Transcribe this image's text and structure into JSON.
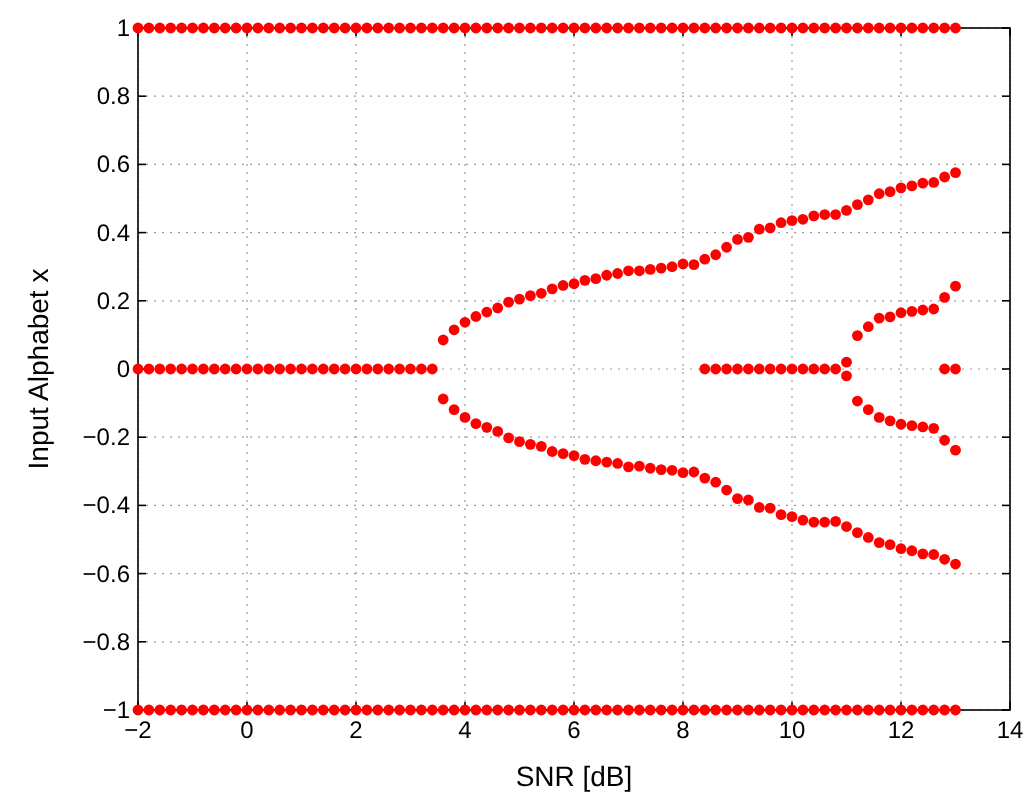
{
  "chart_data": {
    "type": "scatter",
    "xlabel": "SNR [dB]",
    "ylabel": "Input Alphabet x",
    "xlim": [
      -2,
      14
    ],
    "xticks": [
      {
        "value": -2,
        "label": "−2"
      },
      0,
      2,
      4,
      6,
      8,
      10,
      12,
      14
    ],
    "ylim": [
      -1,
      1
    ],
    "yticks": [
      {
        "value": -1,
        "label": "−1"
      },
      {
        "value": -0.8,
        "label": "−0.8"
      },
      {
        "value": -0.6,
        "label": "−0.6"
      },
      {
        "value": -0.4,
        "label": "−0.4"
      },
      {
        "value": -0.2,
        "label": "−0.2"
      },
      0,
      0.2,
      0.4,
      0.6,
      0.8,
      1
    ],
    "grid": true,
    "marker": "circle",
    "series": [
      {
        "color": "#ff0000",
        "x": [
          -2,
          -1.8,
          -1.6,
          -1.4,
          -1.2,
          -1,
          -0.8,
          -0.6,
          -0.4,
          -0.2,
          0,
          0.2,
          0.4,
          0.6,
          0.8,
          1,
          1.2,
          1.4,
          1.6,
          1.8,
          2,
          2.2,
          2.4,
          2.6,
          2.8,
          3,
          3.2,
          3.4,
          3.6,
          3.8,
          4,
          4.2,
          4.4,
          4.6,
          4.8,
          5,
          5.2,
          5.4,
          5.6,
          5.8,
          6,
          6.2,
          6.4,
          6.6,
          6.8,
          7,
          7.2,
          7.4,
          7.6,
          7.8,
          8,
          8.2,
          8.4,
          8.6,
          8.8,
          9,
          9.2,
          9.4,
          9.6,
          9.8,
          10,
          10.2,
          10.4,
          10.6,
          10.8,
          11,
          11.2,
          11.4,
          11.6,
          11.8,
          12,
          12.2,
          12.4,
          12.6,
          12.8,
          13
        ],
        "values": [
          1,
          1,
          1,
          1,
          1,
          1,
          1,
          1,
          1,
          1,
          1,
          1,
          1,
          1,
          1,
          1,
          1,
          1,
          1,
          1,
          1,
          1,
          1,
          1,
          1,
          1,
          1,
          1,
          1,
          1,
          1,
          1,
          1,
          1,
          1,
          1,
          1,
          1,
          1,
          1,
          1,
          1,
          1,
          1,
          1,
          1,
          1,
          1,
          1,
          1,
          1,
          1,
          1,
          1,
          1,
          1,
          1,
          1,
          1,
          1,
          1,
          1,
          1,
          1,
          1,
          1,
          1,
          1,
          1,
          1,
          1,
          1,
          1,
          1,
          1,
          1
        ]
      },
      {
        "color": "#ff0000",
        "x": [
          -2,
          -1.8,
          -1.6,
          -1.4,
          -1.2,
          -1,
          -0.8,
          -0.6,
          -0.4,
          -0.2,
          0,
          0.2,
          0.4,
          0.6,
          0.8,
          1,
          1.2,
          1.4,
          1.6,
          1.8,
          2,
          2.2,
          2.4,
          2.6,
          2.8,
          3,
          3.2,
          3.4,
          3.6,
          3.8,
          4,
          4.2,
          4.4,
          4.6,
          4.8,
          5,
          5.2,
          5.4,
          5.6,
          5.8,
          6,
          6.2,
          6.4,
          6.6,
          6.8,
          7,
          7.2,
          7.4,
          7.6,
          7.8,
          8,
          8.2,
          8.4,
          8.6,
          8.8,
          9,
          9.2,
          9.4,
          9.6,
          9.8,
          10,
          10.2,
          10.4,
          10.6,
          10.8,
          11,
          11.2,
          11.4,
          11.6,
          11.8,
          12,
          12.2,
          12.4,
          12.6,
          12.8,
          13
        ],
        "values": [
          -1,
          -1,
          -1,
          -1,
          -1,
          -1,
          -1,
          -1,
          -1,
          -1,
          -1,
          -1,
          -1,
          -1,
          -1,
          -1,
          -1,
          -1,
          -1,
          -1,
          -1,
          -1,
          -1,
          -1,
          -1,
          -1,
          -1,
          -1,
          -1,
          -1,
          -1,
          -1,
          -1,
          -1,
          -1,
          -1,
          -1,
          -1,
          -1,
          -1,
          -1,
          -1,
          -1,
          -1,
          -1,
          -1,
          -1,
          -1,
          -1,
          -1,
          -1,
          -1,
          -1,
          -1,
          -1,
          -1,
          -1,
          -1,
          -1,
          -1,
          -1,
          -1,
          -1,
          -1,
          -1,
          -1,
          -1,
          -1,
          -1,
          -1,
          -1,
          -1,
          -1,
          -1,
          -1,
          -1
        ]
      },
      {
        "color": "#ff0000",
        "x": [
          -2,
          -1.8,
          -1.6,
          -1.4,
          -1.2,
          -1,
          -0.8,
          -0.6,
          -0.4,
          -0.2,
          0,
          0.2,
          0.4,
          0.6,
          0.8,
          1,
          1.2,
          1.4,
          1.6,
          1.8,
          2,
          2.2,
          2.4,
          2.6,
          2.8,
          3,
          3.2,
          3.4,
          8.4,
          8.6,
          8.8,
          9,
          9.2,
          9.4,
          9.6,
          9.8,
          10,
          10.2,
          10.4,
          10.6,
          10.8,
          12.8,
          13
        ],
        "values": [
          0,
          0,
          0,
          0,
          0,
          0,
          0,
          0,
          0,
          0,
          0,
          0,
          0,
          0,
          0,
          0,
          0,
          0,
          0,
          0,
          0,
          0,
          0,
          0,
          0,
          0,
          0,
          0,
          0,
          0,
          0,
          0,
          0,
          0,
          0,
          0,
          0,
          0,
          0,
          0,
          0,
          0,
          0
        ]
      },
      {
        "color": "#ff0000",
        "x": [
          3.6,
          3.8,
          4,
          4.2,
          4.4,
          4.6,
          4.8,
          5,
          5.2,
          5.4,
          5.6,
          5.8,
          6,
          6.2,
          6.4,
          6.6,
          6.8,
          7,
          7.2,
          7.4,
          7.6,
          7.8,
          8,
          8.2,
          8.4,
          8.6,
          8.8,
          9,
          9.2,
          9.4,
          9.6,
          9.8,
          10,
          10.2,
          10.4,
          10.6,
          10.8,
          11,
          11.2,
          11.4,
          11.6,
          11.8,
          12,
          12.2,
          12.4,
          12.6,
          12.8,
          13
        ],
        "values": [
          0.085,
          0.115,
          0.137,
          0.154,
          0.167,
          0.179,
          0.196,
          0.205,
          0.215,
          0.222,
          0.235,
          0.245,
          0.25,
          0.26,
          0.265,
          0.275,
          0.28,
          0.288,
          0.288,
          0.292,
          0.296,
          0.3,
          0.308,
          0.306,
          0.322,
          0.335,
          0.357,
          0.38,
          0.386,
          0.41,
          0.414,
          0.429,
          0.435,
          0.439,
          0.449,
          0.453,
          0.453,
          0.465,
          0.482,
          0.496,
          0.514,
          0.52,
          0.531,
          0.537,
          0.545,
          0.547,
          0.563,
          0.576
        ]
      },
      {
        "color": "#ff0000",
        "x": [
          3.6,
          3.8,
          4,
          4.2,
          4.4,
          4.6,
          4.8,
          5,
          5.2,
          5.4,
          5.6,
          5.8,
          6,
          6.2,
          6.4,
          6.6,
          6.8,
          7,
          7.2,
          7.4,
          7.6,
          7.8,
          8,
          8.2,
          8.4,
          8.6,
          8.8,
          9,
          9.2,
          9.4,
          9.6,
          9.8,
          10,
          10.2,
          10.4,
          10.6,
          10.8,
          11,
          11.2,
          11.4,
          11.6,
          11.8,
          12,
          12.2,
          12.4,
          12.6,
          12.8,
          13
        ],
        "values": [
          -0.088,
          -0.119,
          -0.142,
          -0.16,
          -0.171,
          -0.183,
          -0.202,
          -0.213,
          -0.221,
          -0.227,
          -0.242,
          -0.248,
          -0.254,
          -0.265,
          -0.269,
          -0.273,
          -0.277,
          -0.287,
          -0.285,
          -0.291,
          -0.295,
          -0.297,
          -0.304,
          -0.302,
          -0.32,
          -0.332,
          -0.355,
          -0.38,
          -0.384,
          -0.406,
          -0.408,
          -0.427,
          -0.433,
          -0.443,
          -0.449,
          -0.449,
          -0.447,
          -0.462,
          -0.48,
          -0.494,
          -0.509,
          -0.515,
          -0.527,
          -0.533,
          -0.542,
          -0.544,
          -0.558,
          -0.572
        ]
      },
      {
        "color": "#ff0000",
        "x": [
          11,
          11.2,
          11.4,
          11.6,
          11.8,
          12,
          12.2,
          12.4,
          12.6,
          12.8,
          13
        ],
        "values": [
          0.02,
          0.098,
          0.124,
          0.149,
          0.153,
          0.165,
          0.169,
          0.173,
          0.176,
          0.21,
          0.243
        ]
      },
      {
        "color": "#ff0000",
        "x": [
          11,
          11.2,
          11.4,
          11.6,
          11.8,
          12,
          12.2,
          12.4,
          12.6,
          12.8,
          13
        ],
        "values": [
          -0.02,
          -0.094,
          -0.119,
          -0.142,
          -0.152,
          -0.162,
          -0.166,
          -0.17,
          -0.174,
          -0.209,
          -0.238
        ]
      }
    ]
  }
}
